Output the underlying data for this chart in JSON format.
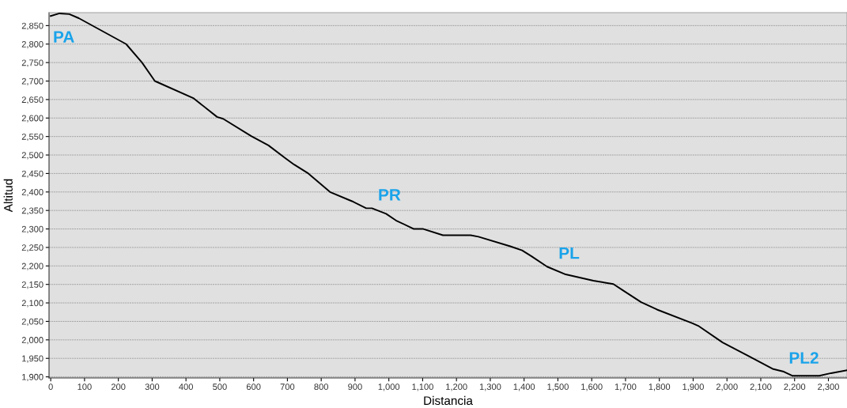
{
  "chart_data": {
    "type": "line",
    "xlabel": "Distancia",
    "ylabel": "Altitud",
    "series": [
      {
        "color": "#000000",
        "x": [
          0,
          26,
          55,
          83,
          223,
          270,
          308,
          423,
          492,
          510,
          593,
          644,
          696,
          720,
          762,
          826,
          891,
          933,
          950,
          992,
          1021,
          1074,
          1102,
          1160,
          1242,
          1265,
          1359,
          1394,
          1422,
          1468,
          1523,
          1605,
          1664,
          1692,
          1746,
          1793,
          1898,
          1915,
          1987,
          2062,
          2137,
          2168,
          2193,
          2273,
          2308,
          2355
        ],
        "values": [
          2876,
          2883,
          2881,
          2870,
          2800,
          2750,
          2700,
          2653,
          2603,
          2598,
          2551,
          2526,
          2490,
          2474,
          2450,
          2400,
          2375,
          2356,
          2356,
          2341,
          2323,
          2300,
          2300,
          2283,
          2283,
          2279,
          2253,
          2242,
          2226,
          2198,
          2177,
          2160,
          2151,
          2134,
          2102,
          2082,
          2045,
          2038,
          1993,
          1957,
          1921,
          1914,
          1903,
          1903,
          1910,
          1918
        ]
      }
    ],
    "annotations": [
      {
        "text": "PA",
        "x": 55,
        "y": 2881
      },
      {
        "text": "PR",
        "x": 992,
        "y": 2341
      },
      {
        "text": "PL",
        "x": 1468,
        "y": 2198
      },
      {
        "text": "PL2",
        "x": 2273,
        "y": 1903
      }
    ],
    "xlim": [
      -5,
      2355
    ],
    "ylim": [
      1897,
      2885
    ],
    "xticks": [
      0,
      100,
      200,
      300,
      400,
      500,
      600,
      700,
      800,
      900,
      {
        "value": 1000,
        "label": "1,000"
      },
      {
        "value": 1100,
        "label": "1,100"
      },
      {
        "value": 1200,
        "label": "1,200"
      },
      {
        "value": 1300,
        "label": "1,300"
      },
      {
        "value": 1400,
        "label": "1,400"
      },
      {
        "value": 1500,
        "label": "1,500"
      },
      {
        "value": 1600,
        "label": "1,600"
      },
      {
        "value": 1700,
        "label": "1,700"
      },
      {
        "value": 1800,
        "label": "1,800"
      },
      {
        "value": 1900,
        "label": "1,900"
      },
      {
        "value": 2000,
        "label": "2,000"
      },
      {
        "value": 2100,
        "label": "2,100"
      },
      {
        "value": 2200,
        "label": "2,200"
      },
      {
        "value": 2300,
        "label": "2,300"
      }
    ],
    "yticks": [
      {
        "value": 1900,
        "label": "1,900"
      },
      {
        "value": 1950,
        "label": "1,950"
      },
      {
        "value": 2000,
        "label": "2,000"
      },
      {
        "value": 2050,
        "label": "2,050"
      },
      {
        "value": 2100,
        "label": "2,100"
      },
      {
        "value": 2150,
        "label": "2,150"
      },
      {
        "value": 2200,
        "label": "2,200"
      },
      {
        "value": 2250,
        "label": "2,250"
      },
      {
        "value": 2300,
        "label": "2,300"
      },
      {
        "value": 2350,
        "label": "2,350"
      },
      {
        "value": 2400,
        "label": "2,400"
      },
      {
        "value": 2450,
        "label": "2,450"
      },
      {
        "value": 2500,
        "label": "2,500"
      },
      {
        "value": 2550,
        "label": "2,550"
      },
      {
        "value": 2600,
        "label": "2,600"
      },
      {
        "value": 2650,
        "label": "2,650"
      },
      {
        "value": 2700,
        "label": "2,700"
      },
      {
        "value": 2750,
        "label": "2,750"
      },
      {
        "value": 2800,
        "label": "2,800"
      },
      {
        "value": 2850,
        "label": "2,850"
      }
    ],
    "grid": "y",
    "marker": "none",
    "line_style": "solid"
  }
}
